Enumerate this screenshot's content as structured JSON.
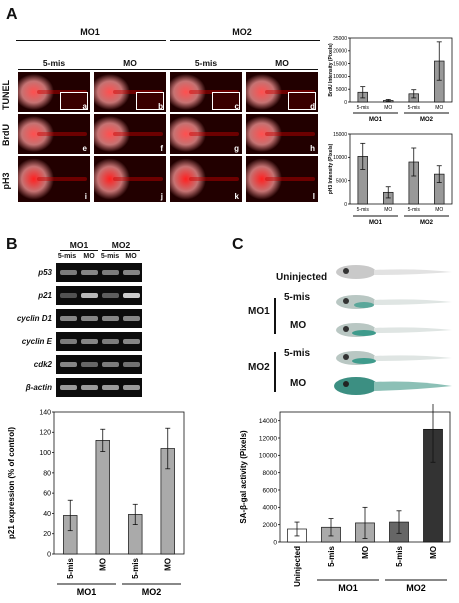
{
  "panelA": {
    "letter": "A",
    "groups": [
      "MO1",
      "MO2"
    ],
    "conditions": [
      "5-mis",
      "MO",
      "5-mis",
      "MO"
    ],
    "rows": [
      "TUNEL",
      "BrdU",
      "pH3"
    ],
    "panel_letters": [
      [
        "a",
        "b",
        "c",
        "d"
      ],
      [
        "e",
        "f",
        "g",
        "h"
      ],
      [
        "i",
        "j",
        "k",
        "l"
      ]
    ]
  },
  "panelB": {
    "letter": "B",
    "groups": [
      "MO1",
      "MO2"
    ],
    "conditions": [
      "5-mis",
      "MO",
      "5-mis",
      "MO"
    ],
    "genes": [
      "p53",
      "p21",
      "cyclin D1",
      "cyclin E",
      "cdk2",
      "β-actin"
    ]
  },
  "panelC": {
    "letter": "C",
    "conditions": [
      "Uninjected",
      "5-mis",
      "MO",
      "5-mis",
      "MO"
    ],
    "groups": [
      "MO1",
      "MO2"
    ]
  },
  "chart_data": [
    {
      "type": "bar",
      "ylabel": "BrdU Intensity (Pixels)",
      "categories": [
        "5-mis",
        "MO",
        "5-mis",
        "MO"
      ],
      "groups": [
        "MO1",
        "MO2"
      ],
      "values": [
        3800,
        600,
        3200,
        16000
      ],
      "errors": [
        2200,
        400,
        1600,
        7500
      ],
      "ylim": [
        0,
        25000
      ],
      "yticks": [
        "0",
        "5000",
        "10000",
        "15000",
        "20000",
        "25000"
      ],
      "bar_color": "#999999"
    },
    {
      "type": "bar",
      "ylabel": "pH3 Intensity (Pixels)",
      "categories": [
        "5-mis",
        "MO",
        "5-mis",
        "MO"
      ],
      "groups": [
        "MO1",
        "MO2"
      ],
      "values": [
        10200,
        2500,
        9000,
        6400
      ],
      "errors": [
        2800,
        1200,
        3000,
        1800
      ],
      "ylim": [
        0,
        15000
      ],
      "yticks": [
        "0",
        "5000",
        "10000",
        "15000"
      ],
      "bar_color": "#999999"
    },
    {
      "type": "bar",
      "ylabel": "p21 expression (% of control)",
      "categories": [
        "5-mis",
        "MO",
        "5-mis",
        "MO"
      ],
      "groups": [
        "MO1",
        "MO2"
      ],
      "values": [
        38,
        112,
        39,
        104
      ],
      "errors": [
        15,
        11,
        10,
        20
      ],
      "ylim": [
        0,
        140
      ],
      "yticks": [
        "0",
        "20",
        "40",
        "60",
        "80",
        "100",
        "120",
        "140"
      ],
      "bar_color": "#aaaaaa"
    },
    {
      "type": "bar",
      "ylabel": "SA-β-gal activity (Pixels)",
      "categories": [
        "Uninjected",
        "5-mis",
        "MO",
        "5-mis",
        "MO"
      ],
      "groups": [
        "MO1",
        "MO2"
      ],
      "values": [
        1500,
        1700,
        2200,
        2300,
        13000
      ],
      "errors": [
        800,
        1000,
        1800,
        1300,
        3800
      ],
      "ylim": [
        0,
        15000
      ],
      "yticks": [
        "0",
        "2000",
        "4000",
        "6000",
        "8000",
        "10000",
        "12000",
        "14000"
      ],
      "bar_colors": [
        "#ffffff",
        "#aaaaaa",
        "#aaaaaa",
        "#666666",
        "#333333"
      ]
    }
  ]
}
